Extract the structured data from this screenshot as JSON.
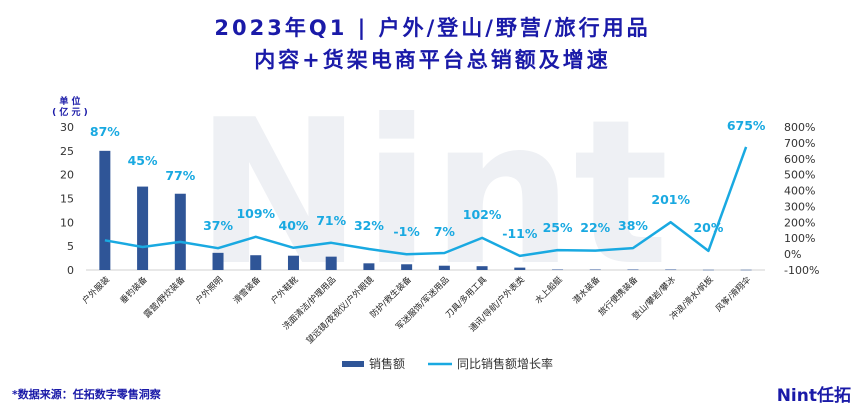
{
  "header": {
    "title_line1": "2023年Q1 | 户外/登山/野营/旅行用品",
    "title_line2": "内容+货架电商平台总销额及增速"
  },
  "watermark": "Nint",
  "unit_label": "单 位\n( 亿 元 )",
  "footer": {
    "source": "*数据来源：任拓数字零售洞察",
    "brand": "Nint任拓"
  },
  "colors": {
    "title": "#1a1aa8",
    "bar": "#2f5597",
    "line": "#19a9e1",
    "label": "#19a9e1"
  },
  "chart_data": {
    "type": "bar+line",
    "categories": [
      "户外服装",
      "垂钓装备",
      "露营/野炊装备",
      "户外照明",
      "滑雪装备",
      "户外鞋靴",
      "洗面清洁/护理用品",
      "望远镜/夜视仪/户外眼镜",
      "防护/救生装备",
      "军迷服饰/军迷用品",
      "刀具/多用工具",
      "通讯/导航/户外表类",
      "水上船艇",
      "潜水装备",
      "旅行便携装备",
      "登山/攀岩/攀冰",
      "冲浪/滑水/帆板",
      "风筝/滑翔伞"
    ],
    "series": [
      {
        "name": "销售额",
        "type": "bar",
        "axis": "left",
        "values": [
          25,
          17.5,
          16,
          3.6,
          3.1,
          3.0,
          2.8,
          1.4,
          1.2,
          0.9,
          0.8,
          0.5,
          0.1,
          0.1,
          0.1,
          0.1,
          0.05,
          0.05
        ]
      },
      {
        "name": "同比销售额增长率",
        "type": "line",
        "axis": "right",
        "values": [
          87,
          45,
          77,
          37,
          109,
          40,
          71,
          32,
          -1,
          7,
          102,
          -11,
          25,
          22,
          38,
          201,
          20,
          675
        ],
        "labels": [
          "87%",
          "45%",
          "77%",
          "37%",
          "109%",
          "40%",
          "71%",
          "32%",
          "-1%",
          "7%",
          "102%",
          "-11%",
          "25%",
          "22%",
          "38%",
          "201%",
          "20%",
          "675%"
        ]
      }
    ],
    "y_left": {
      "min": 0,
      "max": 30,
      "step": 5,
      "ticks": [
        "0",
        "5",
        "10",
        "15",
        "20",
        "25",
        "30"
      ]
    },
    "y_right": {
      "min": -100,
      "max": 800,
      "step": 100,
      "ticks": [
        "-100%",
        "0%",
        "100%",
        "200%",
        "300%",
        "400%",
        "500%",
        "600%",
        "700%",
        "800%"
      ]
    },
    "legend": {
      "position": "bottom",
      "items": [
        "销售额",
        "同比销售额增长率"
      ]
    }
  }
}
